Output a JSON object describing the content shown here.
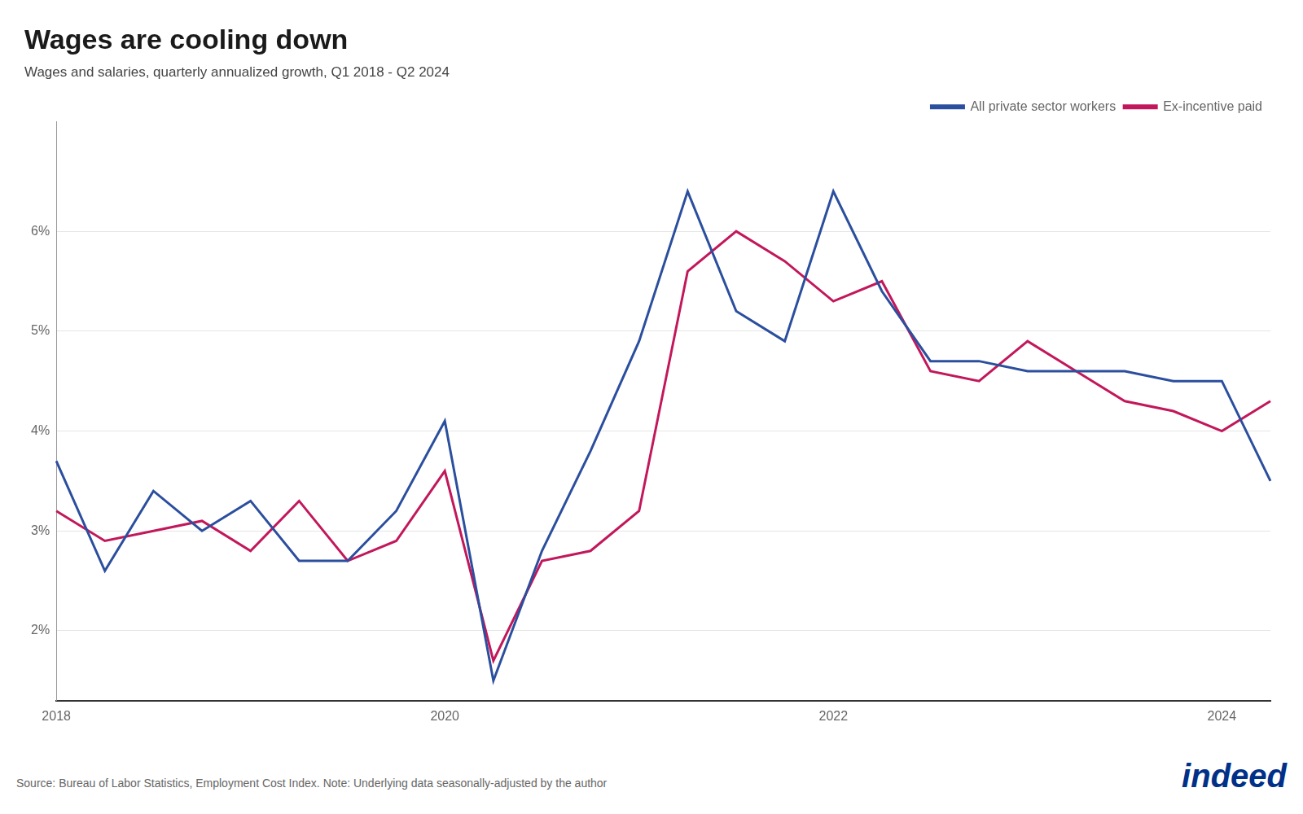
{
  "chart_data": {
    "type": "line",
    "title": "Wages are cooling down",
    "subtitle": "Wages and salaries, quarterly annualized growth, Q1 2018 - Q2 2024",
    "source": "Source: Bureau of Labor Statistics, Employment Cost Index. Note: Underlying data seasonally-adjusted by the author",
    "logo": "indeed",
    "categories": [
      "2018",
      null,
      null,
      null,
      null,
      null,
      null,
      null,
      "2020",
      null,
      null,
      null,
      null,
      null,
      null,
      null,
      "2022",
      null,
      null,
      null,
      null,
      null,
      null,
      null,
      "2024",
      null
    ],
    "series": [
      {
        "name": "All private sector workers",
        "color": "#2b4f9e",
        "values": [
          3.7,
          2.6,
          3.4,
          3.0,
          3.3,
          2.7,
          2.7,
          3.2,
          4.1,
          1.5,
          2.8,
          3.8,
          4.9,
          6.4,
          5.2,
          4.9,
          6.4,
          5.4,
          4.7,
          4.7,
          4.6,
          4.6,
          4.6,
          4.5,
          4.5,
          3.5
        ]
      },
      {
        "name": "Ex-incentive paid",
        "color": "#c2185b",
        "values": [
          3.2,
          2.9,
          3.0,
          3.1,
          2.8,
          3.3,
          2.7,
          2.9,
          3.6,
          1.7,
          2.7,
          2.8,
          3.2,
          5.6,
          6.0,
          5.7,
          5.3,
          5.5,
          4.6,
          4.5,
          4.9,
          4.6,
          4.3,
          4.2,
          4.0,
          4.3
        ]
      }
    ],
    "ylim": [
      1.3,
      7.1
    ],
    "yticks": [
      {
        "value": 2.0,
        "label": "2%"
      },
      {
        "value": 3.0,
        "label": "3%"
      },
      {
        "value": 4.0,
        "label": "4%"
      },
      {
        "value": 5.0,
        "label": "5%"
      },
      {
        "value": 6.0,
        "label": "6%"
      }
    ],
    "grid": true,
    "legend": "top-right"
  }
}
